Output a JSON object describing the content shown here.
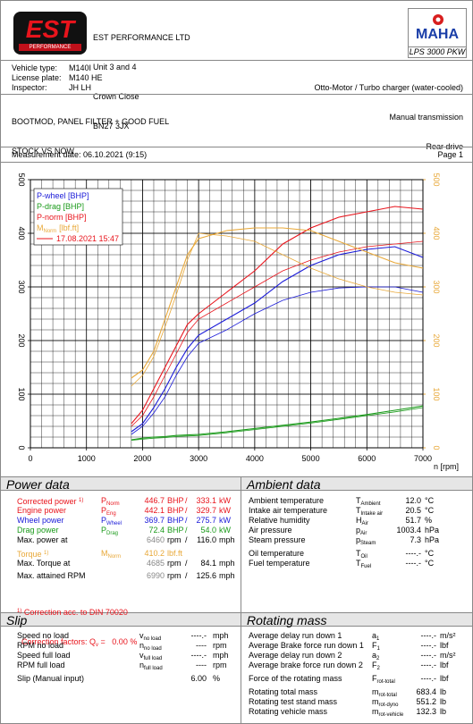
{
  "header": {
    "logo": {
      "main": "EST",
      "sub": "PERFORMANCE"
    },
    "address": [
      "EST PERFORMANCE LTD",
      "Unit 3 and 4",
      "Crown Close",
      "BN27 3JX"
    ],
    "brand": {
      "name": "MAHA",
      "model": "LPS 3000 PKW"
    }
  },
  "vehicle": {
    "left": [
      [
        "Vehicle type:",
        "M140I"
      ],
      [
        "License plate:",
        "M140 HE"
      ],
      [
        "Inspector:",
        "JH LH"
      ]
    ],
    "right": [
      "Otto-Motor / Turbo charger (water-cooled)",
      "Manual transmission",
      "Rear drive"
    ]
  },
  "notes": [
    "BOOTMOD, PANEL FILTER + GOOD FUEL",
    "STOCK VS NOW"
  ],
  "measurement": {
    "date": "Measurement date: 06.10.2021 (9:15)",
    "page": "Page 1"
  },
  "chart": {
    "type": "line",
    "x_label": "n [rpm]",
    "xlim": [
      0,
      7000
    ],
    "xticks": [
      0,
      1000,
      2000,
      3000,
      4000,
      5000,
      6000,
      7000
    ],
    "ylim": [
      0,
      500
    ],
    "yticks": [
      0,
      100,
      200,
      300,
      400,
      500
    ],
    "y2lim": [
      0,
      500
    ],
    "y2ticks": [
      0,
      100,
      200,
      300,
      400,
      500
    ],
    "y2_color": "#e8a838",
    "grid": true,
    "grid_step_x": 200,
    "grid_step_y": 20,
    "x": [
      1800,
      2000,
      2200,
      2400,
      2600,
      2800,
      3000,
      3500,
      4000,
      4500,
      5000,
      5500,
      6000,
      6500,
      7000
    ],
    "series": [
      {
        "name": "P-wheel [BHP]",
        "color": "#1a1ad8",
        "values": [
          30,
          45,
          75,
          110,
          150,
          185,
          210,
          240,
          270,
          310,
          340,
          360,
          370,
          375,
          355
        ],
        "ref_values": [
          25,
          40,
          65,
          95,
          135,
          170,
          195,
          220,
          250,
          275,
          290,
          298,
          300,
          300,
          290
        ]
      },
      {
        "name": "P-drag [BHP]",
        "color": "#1a9a1a",
        "values": [
          15,
          18,
          20,
          21,
          23,
          24,
          25,
          30,
          36,
          42,
          48,
          55,
          62,
          70,
          78
        ],
        "ref_values": [
          14,
          16,
          18,
          19,
          21,
          22,
          23,
          28,
          34,
          40,
          46,
          53,
          60,
          67,
          75
        ]
      },
      {
        "name": "P-norm [BHP]",
        "color": "#e8141c",
        "values": [
          45,
          70,
          110,
          150,
          190,
          230,
          250,
          290,
          330,
          380,
          410,
          430,
          440,
          450,
          445
        ],
        "ref_values": [
          40,
          60,
          95,
          135,
          175,
          215,
          240,
          270,
          300,
          330,
          350,
          365,
          375,
          380,
          385
        ]
      },
      {
        "name": "M",
        "name_sub": "Norm",
        "name_unit": "[lbf.ft]",
        "axis": "y2",
        "color": "#e8a838",
        "values": [
          130,
          145,
          180,
          240,
          300,
          360,
          390,
          405,
          410,
          410,
          405,
          385,
          365,
          345,
          335
        ],
        "ref_values": [
          115,
          135,
          170,
          225,
          285,
          350,
          400,
          395,
          385,
          360,
          335,
          315,
          300,
          290,
          285
        ]
      }
    ],
    "comparison": {
      "label": "17.08.2021 15:47",
      "color": "#e8141c"
    }
  },
  "power": {
    "title": "Power data",
    "rows": [
      {
        "label": "Corrected power",
        "sup": "1)",
        "sym": "P",
        "sub": "Norm",
        "v1": "446.7",
        "u1": "BHP",
        "sep": "/",
        "v2": "333.1",
        "u2": "kW",
        "color": "#e8141c"
      },
      {
        "label": "Engine power",
        "sym": "P",
        "sub": "Eng",
        "v1": "442.1",
        "u1": "BHP",
        "sep": "/",
        "v2": "329.7",
        "u2": "kW",
        "color": "#e8141c"
      },
      {
        "label": "Wheel power",
        "sym": "P",
        "sub": "Wheel",
        "v1": "369.7",
        "u1": "BHP",
        "sep": "/",
        "v2": "275.7",
        "u2": "kW",
        "color": "#1a1ad8"
      },
      {
        "label": "Drag power",
        "sym": "P",
        "sub": "Drag",
        "v1": "72.4",
        "u1": "BHP",
        "sep": "/",
        "v2": "54.0",
        "u2": "kW",
        "color": "#1a9a1a"
      },
      {
        "label": "Max. power at",
        "v1": "6460",
        "v1_color": "#888888",
        "u1": "rpm",
        "sep": "/",
        "v2": "116.0",
        "u2": "mph"
      },
      {
        "label": "Torque",
        "sup": "1)",
        "sym": "M",
        "sub": "Norm",
        "v1": "410.2",
        "u1": "lbf.ft",
        "color": "#e8a838"
      },
      {
        "label": "Max. Torque at",
        "v1": "4685",
        "v1_color": "#888888",
        "u1": "rpm",
        "sep": "/",
        "v2": "84.1",
        "u2": "mph"
      },
      {
        "label": "Max. attained RPM",
        "v1": "6990",
        "v1_color": "#888888",
        "u1": "rpm",
        "sep": "/",
        "v2": "125.6",
        "u2": "mph"
      }
    ],
    "footnote": {
      "sup": "1)",
      "text": "Correction acc. to DIN 70020"
    },
    "correction": {
      "label": "Correction factors: Q",
      "sub": "v",
      "text": " =   0.00 %"
    },
    "note_color": "#e8141c"
  },
  "ambient": {
    "title": "Ambient data",
    "rows": [
      {
        "label": "Ambient temperature",
        "sym": "T",
        "sub": "Ambient",
        "v1": "12.0",
        "u1": "°C"
      },
      {
        "label": "Intake air temperature",
        "sym": "T",
        "sub": "Intake air",
        "v1": "20.5",
        "u1": "°C"
      },
      {
        "label": "Relative humidity",
        "sym": "H",
        "sub": "Air",
        "v1": "51.7",
        "u1": "%"
      },
      {
        "label": "Air pressure",
        "sym": "p",
        "sub": "Air",
        "v1": "1003.4",
        "u1": "hPa"
      },
      {
        "label": "Steam pressure",
        "sym": "p",
        "sub": "Steam",
        "v1": "7.3",
        "u1": "hPa"
      },
      {
        "label": "Oil temperature",
        "sym": "T",
        "sub": "Oil",
        "v1": "----.-",
        "u1": "°C"
      },
      {
        "label": "Fuel temperature",
        "sym": "T",
        "sub": "Fuel",
        "v1": "----.-",
        "u1": "°C"
      }
    ]
  },
  "slip": {
    "title": "Slip",
    "rows": [
      {
        "label": "Speed no load",
        "sym": "v",
        "sub": "no load",
        "v1": "----.-",
        "u1": "mph"
      },
      {
        "label": "RPM no load",
        "sym": "n",
        "sub": "no load",
        "v1": "----",
        "u1": "rpm"
      },
      {
        "label": "Speed full load",
        "sym": "v",
        "sub": "full load",
        "v1": "----.-",
        "u1": "mph"
      },
      {
        "label": "RPM full load",
        "sym": "n",
        "sub": "full load",
        "v1": "----",
        "u1": "rpm"
      },
      {
        "label": "Slip (Manual input)",
        "v1": "6.00",
        "u1": "%"
      }
    ]
  },
  "rotating": {
    "title": "Rotating mass",
    "rows": [
      {
        "label": "Average delay run down 1",
        "sym": "a",
        "sub": "1",
        "v1": "----.-",
        "u1": "m/s²"
      },
      {
        "label": "Average Brake force run down 1",
        "sym": "F",
        "sub": "1",
        "v1": "----.-",
        "u1": "lbf"
      },
      {
        "label": "Average delay run down 2",
        "sym": "a",
        "sub": "2",
        "v1": "----.-",
        "u1": "m/s²"
      },
      {
        "label": "Average brake force run down 2",
        "sym": "F",
        "sub": "2",
        "v1": "----.-",
        "u1": "lbf"
      },
      {
        "label": "Force of the rotating mass",
        "sym": "F",
        "sub": "rot-total",
        "v1": "----.-",
        "u1": "lbf"
      },
      {
        "label": "Rotating total mass",
        "sym": "m",
        "sub": "rot-total",
        "v1": "683.4",
        "u1": "lb"
      },
      {
        "label": "Rotating test stand mass",
        "sym": "m",
        "sub": "rot-dyno",
        "v1": "551.2",
        "u1": "lb"
      },
      {
        "label": "Rotating vehicle mass",
        "sym": "m",
        "sub": "rot-vehicle",
        "v1": "132.3",
        "u1": "lb"
      }
    ]
  }
}
